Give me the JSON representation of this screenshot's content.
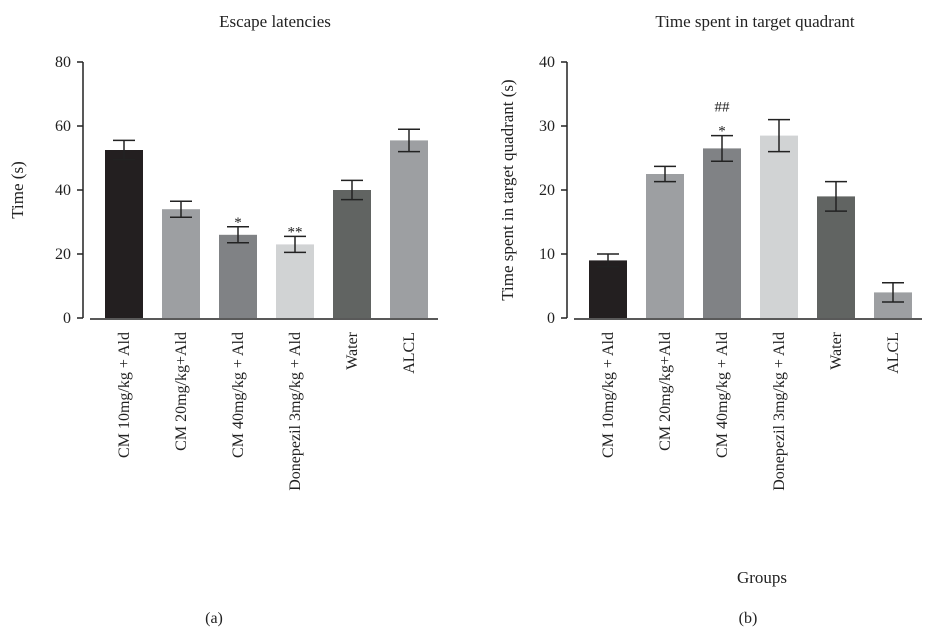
{
  "chart_data": [
    {
      "type": "bar",
      "title": "Escape latencies",
      "xlabel": "",
      "ylabel": "Time (s)",
      "ylim": [
        0,
        80
      ],
      "yticks": [
        0,
        20,
        40,
        60,
        80
      ],
      "categories": [
        "CM 10mg/kg + Ald",
        "CM 20mg/kg+Ald",
        "CM 40mg/kg + Ald",
        "Donepezil 3mg/kg + Ald",
        "Water",
        "ALCL"
      ],
      "values": [
        52.5,
        34,
        26,
        23,
        40,
        55.5
      ],
      "errors": [
        3,
        2.5,
        2.5,
        2.5,
        3,
        3.5
      ],
      "annotations": [
        "",
        "",
        "*",
        "**",
        "",
        ""
      ],
      "colors": [
        "#231f20",
        "#9d9fa2",
        "#808285",
        "#d1d3d4",
        "#616462",
        "#9d9fa2"
      ],
      "panel_label": "(a)"
    },
    {
      "type": "bar",
      "title": "Time spent in target quadrant",
      "xlabel": "Groups",
      "ylabel": "Time spent in target quadrant (s)",
      "ylim": [
        0,
        40
      ],
      "yticks": [
        0,
        10,
        20,
        30,
        40
      ],
      "categories": [
        "CM 10mg/kg + Ald",
        "CM 20mg/kg+Ald",
        "CM 40mg/kg + Ald",
        "Donepezil 3mg/kg + Ald",
        "Water",
        "ALCL"
      ],
      "values": [
        9,
        22.5,
        26.5,
        28.5,
        19,
        4
      ],
      "errors": [
        1,
        1.2,
        2,
        2.5,
        2.3,
        1.5
      ],
      "annotations": [
        "",
        "",
        "##\n*",
        "",
        "",
        ""
      ],
      "colors": [
        "#231f20",
        "#9d9fa2",
        "#808285",
        "#d1d3d4",
        "#616462",
        "#9d9fa2"
      ],
      "panel_label": "(b)"
    }
  ]
}
